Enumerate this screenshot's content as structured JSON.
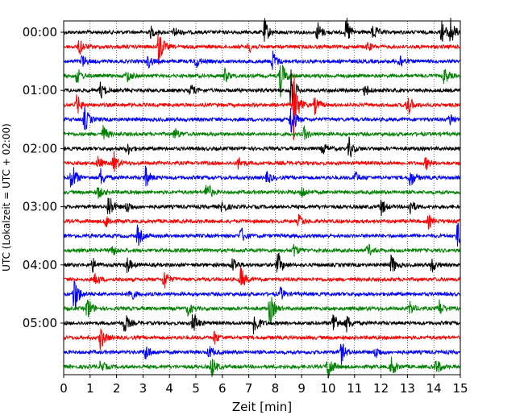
{
  "chart_data": {
    "type": "line",
    "title": "",
    "xlabel": "Zeit  [min]",
    "ylabel": "UTC (Lokalzeit = UTC + 02:00)",
    "xlim": [
      0,
      15
    ],
    "x_ticks": [
      0,
      1,
      2,
      3,
      4,
      5,
      6,
      7,
      8,
      9,
      10,
      11,
      12,
      13,
      14,
      15
    ],
    "x_tick_labels": [
      "0",
      "1",
      "2",
      "3",
      "4",
      "5",
      "6",
      "7",
      "8",
      "9",
      "10",
      "11",
      "12",
      "13",
      "14",
      "15"
    ],
    "y_tick_labels": [
      "00:00",
      "01:00",
      "02:00",
      "03:00",
      "04:00",
      "05:00"
    ],
    "grid": "vertical dotted",
    "legend": "none",
    "trace_minutes": 15,
    "colors_cycle": [
      "#000000",
      "#ff0000",
      "#0000ff",
      "#008000"
    ],
    "series": [
      {
        "start_utc": "00:00",
        "color": "#000000",
        "events": [
          [
            3.3,
            0.25
          ],
          [
            4.2,
            0.25
          ],
          [
            7.6,
            0.6
          ],
          [
            9.6,
            0.5
          ],
          [
            10.7,
            0.7
          ],
          [
            11.7,
            0.4
          ],
          [
            14.3,
            0.5
          ],
          [
            14.6,
            0.8
          ]
        ]
      },
      {
        "start_utc": "00:15",
        "color": "#ff0000",
        "events": [
          [
            0.6,
            0.4
          ],
          [
            3.6,
            0.9
          ],
          [
            7.0,
            0.25
          ],
          [
            11.5,
            0.2
          ]
        ]
      },
      {
        "start_utc": "00:30",
        "color": "#0000ff",
        "events": [
          [
            0.7,
            0.3
          ],
          [
            3.2,
            0.3
          ],
          [
            5.0,
            0.3
          ],
          [
            7.9,
            0.5
          ],
          [
            12.7,
            0.4
          ]
        ]
      },
      {
        "start_utc": "00:45",
        "color": "#008000",
        "events": [
          [
            0.5,
            0.4
          ],
          [
            2.4,
            0.3
          ],
          [
            6.1,
            0.3
          ],
          [
            8.2,
            0.9
          ],
          [
            14.4,
            0.4
          ]
        ]
      },
      {
        "start_utc": "01:00",
        "color": "#000000",
        "events": [
          [
            1.4,
            0.4
          ],
          [
            4.8,
            0.3
          ],
          [
            8.6,
            1.0
          ],
          [
            11.4,
            0.3
          ]
        ]
      },
      {
        "start_utc": "01:15",
        "color": "#ff0000",
        "events": [
          [
            0.5,
            0.5
          ],
          [
            8.7,
            1.6
          ],
          [
            9.5,
            0.4
          ],
          [
            13.0,
            0.6
          ]
        ]
      },
      {
        "start_utc": "01:30",
        "color": "#0000ff",
        "events": [
          [
            0.8,
            0.6
          ],
          [
            8.6,
            0.8
          ],
          [
            14.6,
            0.3
          ]
        ]
      },
      {
        "start_utc": "01:45",
        "color": "#008000",
        "events": [
          [
            1.5,
            0.4
          ],
          [
            4.2,
            0.3
          ],
          [
            9.1,
            0.3
          ]
        ]
      },
      {
        "start_utc": "02:00",
        "color": "#000000",
        "events": [
          [
            2.4,
            0.3
          ],
          [
            9.8,
            0.3
          ],
          [
            10.8,
            0.5
          ]
        ]
      },
      {
        "start_utc": "02:15",
        "color": "#ff0000",
        "events": [
          [
            1.3,
            0.3
          ],
          [
            1.9,
            0.5
          ],
          [
            6.6,
            0.3
          ],
          [
            13.7,
            0.3
          ]
        ]
      },
      {
        "start_utc": "02:30",
        "color": "#0000ff",
        "events": [
          [
            0.3,
            0.8
          ],
          [
            1.4,
            0.4
          ],
          [
            3.1,
            0.5
          ],
          [
            7.7,
            0.3
          ],
          [
            11.0,
            0.3
          ],
          [
            13.1,
            0.5
          ]
        ]
      },
      {
        "start_utc": "02:45",
        "color": "#008000",
        "events": [
          [
            1.3,
            0.3
          ],
          [
            5.4,
            0.6
          ],
          [
            9.0,
            0.3
          ]
        ]
      },
      {
        "start_utc": "03:00",
        "color": "#000000",
        "events": [
          [
            1.7,
            0.7
          ],
          [
            2.4,
            0.3
          ],
          [
            6.0,
            0.3
          ],
          [
            12.0,
            0.4
          ],
          [
            13.1,
            0.4
          ]
        ]
      },
      {
        "start_utc": "03:15",
        "color": "#ff0000",
        "events": [
          [
            1.6,
            0.3
          ],
          [
            8.9,
            0.3
          ],
          [
            13.8,
            0.3
          ]
        ]
      },
      {
        "start_utc": "03:30",
        "color": "#0000ff",
        "events": [
          [
            2.8,
            0.5
          ],
          [
            6.7,
            0.4
          ],
          [
            14.9,
            0.6
          ]
        ]
      },
      {
        "start_utc": "03:45",
        "color": "#008000",
        "events": [
          [
            1.8,
            0.3
          ],
          [
            8.7,
            0.3
          ],
          [
            11.5,
            0.3
          ]
        ]
      },
      {
        "start_utc": "04:00",
        "color": "#000000",
        "events": [
          [
            1.1,
            0.3
          ],
          [
            2.4,
            0.4
          ],
          [
            6.4,
            0.4
          ],
          [
            8.1,
            0.6
          ],
          [
            12.4,
            0.5
          ],
          [
            13.9,
            0.4
          ]
        ]
      },
      {
        "start_utc": "04:15",
        "color": "#ff0000",
        "events": [
          [
            1.2,
            0.3
          ],
          [
            3.8,
            0.5
          ],
          [
            6.7,
            0.6
          ]
        ]
      },
      {
        "start_utc": "04:30",
        "color": "#0000ff",
        "events": [
          [
            0.4,
            1.0
          ],
          [
            2.5,
            0.4
          ],
          [
            8.2,
            0.3
          ]
        ]
      },
      {
        "start_utc": "04:45",
        "color": "#008000",
        "events": [
          [
            0.9,
            0.6
          ],
          [
            4.7,
            0.3
          ],
          [
            7.8,
            0.8
          ],
          [
            13.1,
            0.3
          ],
          [
            14.2,
            0.4
          ]
        ]
      },
      {
        "start_utc": "05:00",
        "color": "#000000",
        "events": [
          [
            2.3,
            0.5
          ],
          [
            4.9,
            0.6
          ],
          [
            7.2,
            0.7
          ],
          [
            10.2,
            0.6
          ],
          [
            10.7,
            0.4
          ]
        ]
      },
      {
        "start_utc": "05:15",
        "color": "#ff0000",
        "events": [
          [
            1.4,
            0.6
          ],
          [
            5.7,
            0.3
          ]
        ]
      },
      {
        "start_utc": "05:30",
        "color": "#0000ff",
        "events": [
          [
            3.1,
            0.4
          ],
          [
            5.5,
            0.3
          ],
          [
            10.5,
            0.5
          ],
          [
            11.8,
            0.3
          ]
        ]
      },
      {
        "start_utc": "05:45",
        "color": "#008000",
        "events": [
          [
            1.4,
            0.3
          ],
          [
            5.6,
            0.5
          ],
          [
            10.0,
            0.7
          ],
          [
            12.4,
            0.5
          ],
          [
            14.1,
            0.4
          ]
        ]
      }
    ]
  }
}
